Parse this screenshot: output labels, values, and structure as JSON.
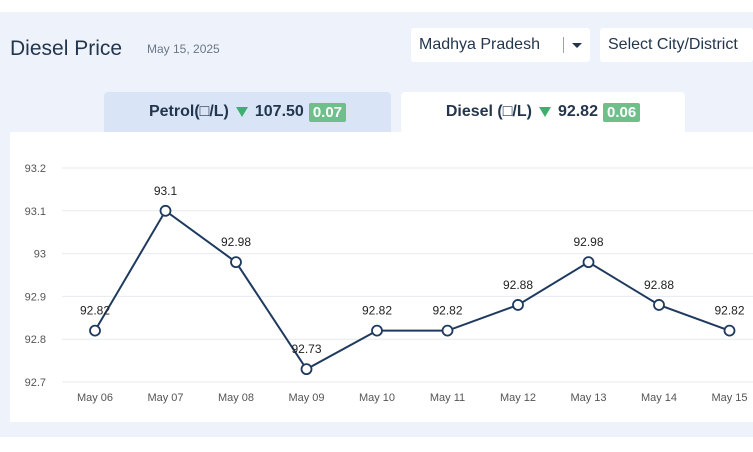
{
  "header": {
    "title": "Diesel Price",
    "date": "May 15, 2025",
    "state_select": "Madhya Pradesh",
    "city_select": "Select City/District"
  },
  "tabs": {
    "petrol": {
      "label": "Petrol(□/L)",
      "price": "107.50",
      "change": "0.07"
    },
    "diesel": {
      "label": "Diesel (□/L)",
      "price": "92.82",
      "change": "0.06"
    }
  },
  "colors": {
    "line": "#1f3a5f",
    "grid": "#e6e9ee",
    "down": "#3fae6f",
    "badge": "#6fbf8a"
  },
  "chart_data": {
    "type": "line",
    "categories": [
      "May 06",
      "May 07",
      "May 08",
      "May 09",
      "May 10",
      "May 11",
      "May 12",
      "May 13",
      "May 14",
      "May 15"
    ],
    "values": [
      92.82,
      93.1,
      92.98,
      92.73,
      92.82,
      92.82,
      92.88,
      92.98,
      92.88,
      92.82
    ],
    "data_labels": [
      "92.82",
      "93.1",
      "92.98",
      "92.73",
      "92.82",
      "92.82",
      "92.88",
      "92.98",
      "92.88",
      "92.82"
    ],
    "yticks": [
      92.7,
      92.8,
      92.9,
      93,
      93.1,
      93.2
    ],
    "ytick_labels": [
      "92.7",
      "92.8",
      "92.9",
      "93",
      "93.1",
      "93.2"
    ],
    "ylim": [
      92.7,
      93.2
    ],
    "grid": true,
    "title": "",
    "xlabel": "",
    "ylabel": ""
  }
}
